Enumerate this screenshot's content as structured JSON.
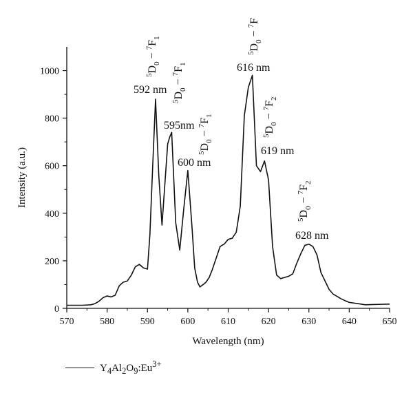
{
  "chart_data": {
    "type": "line",
    "xlabel": "Wavelength (nm)",
    "ylabel": "Intensity (a.u.)",
    "xlim": [
      570,
      650
    ],
    "ylim": [
      0,
      1100
    ],
    "x_ticks": [
      570,
      580,
      590,
      600,
      610,
      620,
      630,
      640,
      650
    ],
    "y_ticks": [
      0,
      200,
      400,
      600,
      800,
      1000
    ],
    "legend": {
      "placement": "bottom-left",
      "label_html": "Y<sub>4</sub>Al<sub>2</sub>O<sub>9</sub>:Eu<sup>3+</sup>"
    },
    "series": [
      {
        "name": "Y4Al2O9:Eu3+",
        "x": [
          570,
          572,
          574,
          576,
          577,
          578,
          579,
          580,
          581,
          582,
          583,
          584,
          585,
          586,
          587,
          588,
          589,
          590,
          590.6,
          591.3,
          592,
          592.8,
          593.6,
          594.3,
          595,
          595.5,
          596,
          597,
          598,
          599,
          600,
          601,
          601.7,
          602.4,
          603,
          603.8,
          604.5,
          605.3,
          606,
          607,
          608,
          609,
          610,
          611,
          612,
          613,
          614,
          615,
          616,
          617,
          618,
          619,
          620,
          621,
          622,
          623,
          624,
          625,
          626,
          627,
          628,
          629,
          630,
          631,
          632,
          633,
          634,
          635,
          636,
          637,
          638,
          639,
          640,
          642,
          644,
          646,
          648,
          650
        ],
        "y": [
          13,
          13,
          13,
          15,
          20,
          30,
          45,
          52,
          48,
          55,
          95,
          110,
          115,
          140,
          175,
          185,
          170,
          165,
          310,
          600,
          880,
          560,
          350,
          520,
          690,
          720,
          740,
          360,
          245,
          420,
          580,
          350,
          170,
          110,
          90,
          100,
          110,
          130,
          160,
          210,
          260,
          270,
          290,
          295,
          320,
          430,
          810,
          930,
          980,
          600,
          575,
          620,
          540,
          260,
          140,
          125,
          130,
          135,
          145,
          190,
          230,
          265,
          270,
          260,
          225,
          150,
          115,
          80,
          60,
          50,
          40,
          32,
          25,
          20,
          15,
          16,
          17,
          18
        ]
      }
    ],
    "annotations": [
      {
        "label": "592 nm",
        "transition_html": "<tspan>5</tspan>D<tspan>0</tspan> − <tspan>7</tspan>F<tspan>1</tspan>"
      },
      {
        "label": "595nm",
        "transition_html": ""
      },
      {
        "label": "600 nm",
        "transition_html": ""
      },
      {
        "label": "616 nm",
        "transition_html": ""
      },
      {
        "label": "619 nm",
        "transition_html": ""
      },
      {
        "label": "628 nm",
        "transition_html": ""
      }
    ],
    "transition_labels": [
      {
        "pre": "5",
        "a": "D",
        "a_sub": "0",
        "dash": " − ",
        "b_pre": "7",
        "b": "F",
        "b_sub": "1"
      },
      {
        "pre": "5",
        "a": "D",
        "a_sub": "0",
        "dash": " − ",
        "b_pre": "7",
        "b": "F",
        "b_sub": "1"
      },
      {
        "pre": "5",
        "a": "D",
        "a_sub": "0",
        "dash": " − ",
        "b_pre": "7",
        "b": "F",
        "b_sub": "1"
      },
      {
        "pre": "5",
        "a": "D",
        "a_sub": "0",
        "dash": " − ",
        "b_pre": "7",
        "b": "F",
        "b_sub": ""
      },
      {
        "pre": "5",
        "a": "D",
        "a_sub": "0",
        "dash": " − ",
        "b_pre": "7",
        "b": "F",
        "b_sub": "2"
      },
      {
        "pre": "5",
        "a": "D",
        "a_sub": "0",
        "dash": " − ",
        "b_pre": "7",
        "b": "F",
        "b_sub": "2"
      }
    ],
    "line_color": "#111111"
  }
}
